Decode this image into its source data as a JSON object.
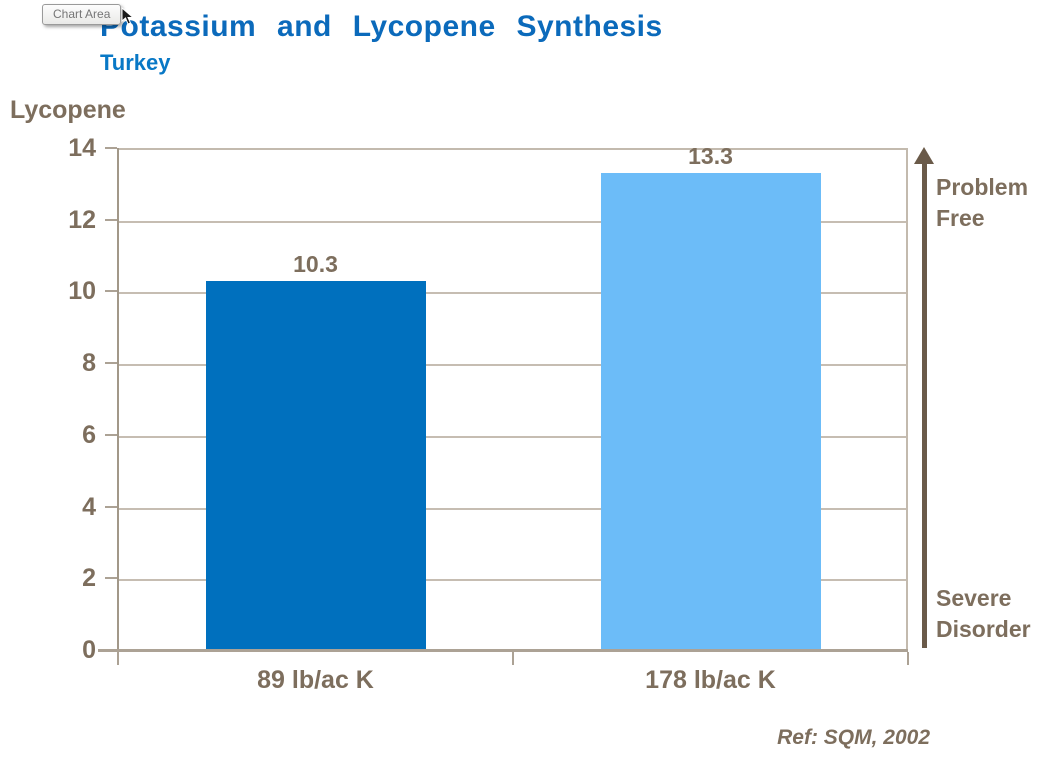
{
  "tooltip": {
    "label": "Chart Area"
  },
  "header": {
    "title": "Potassium and Lycopene Synthesis",
    "subtitle": "Turkey"
  },
  "chart_data": {
    "type": "bar",
    "title": "Potassium and Lycopene Synthesis",
    "subtitle": "Turkey",
    "categories": [
      "89 lb/ac K",
      "178 lb/ac K"
    ],
    "values": [
      10.3,
      13.3
    ],
    "value_labels": [
      "10.3",
      "13.3"
    ],
    "bar_colors": [
      "#0070BE",
      "#6CBCF8"
    ],
    "ylabel": "Lycopene",
    "xlabel": "",
    "ylim": [
      0,
      14
    ],
    "yticks": [
      0,
      2,
      4,
      6,
      8,
      10,
      12,
      14
    ],
    "grid": true,
    "legend": "none",
    "annotations": [
      {
        "text": "Problem Free",
        "position": "right-top"
      },
      {
        "text": "Severe Disorder",
        "position": "right-bottom"
      }
    ],
    "source": "Ref: SQM, 2002"
  },
  "annotation_arrow": {
    "top_label": "Problem Free",
    "bottom_label": "Severe Disorder"
  },
  "footer": {
    "reference": "Ref: SQM, 2002"
  },
  "colors": {
    "title_blue": "#0B6ABB",
    "subtitle_blue": "#0878C6",
    "text_brown": "#7D6E5D",
    "arrow_brown": "#6A5A49",
    "axis_line": "#ACA295",
    "grid_line": "#C6BDB2",
    "bar_dark_blue": "#0070BE",
    "bar_light_blue": "#6CBCF8"
  }
}
